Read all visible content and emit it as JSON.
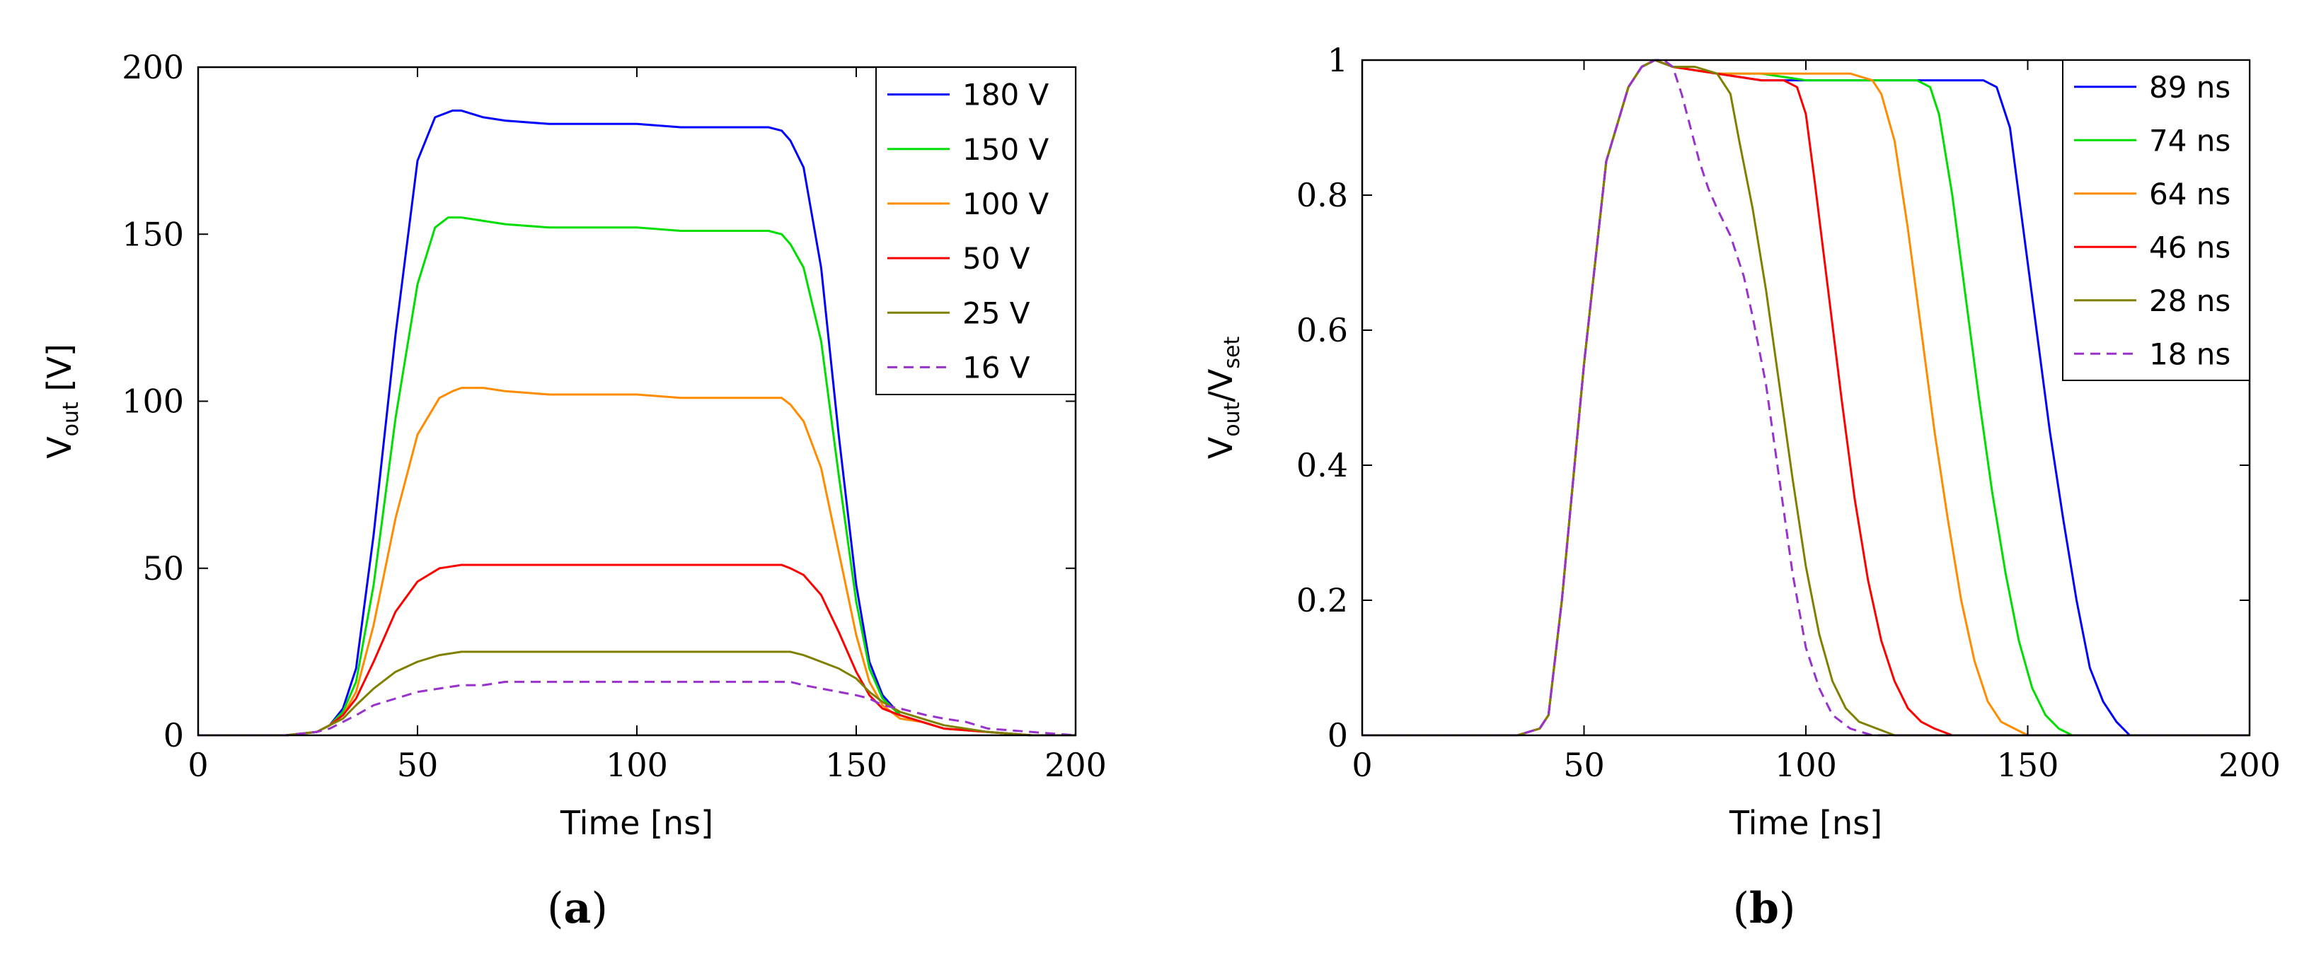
{
  "chart_data": [
    {
      "type": "line",
      "panel_label": "a",
      "caption_open": "(",
      "caption_close": ")",
      "xlabel": "Time [ns]",
      "ylabel_main": "V",
      "ylabel_sub": "out",
      "ylabel_unit": " [V]",
      "xlim": [
        0,
        200
      ],
      "ylim": [
        0,
        200
      ],
      "xticks": [
        0,
        50,
        100,
        150,
        200
      ],
      "xtick_labels": [
        "0",
        "50",
        "100",
        "150",
        "200"
      ],
      "yticks": [
        0,
        50,
        100,
        150,
        200
      ],
      "ytick_labels": [
        "0",
        "50",
        "100",
        "150",
        "200"
      ],
      "legend_position": "top-right",
      "series": [
        {
          "name": "180 V",
          "color": "#0000ff",
          "dashed": false,
          "x": [
            0,
            20,
            27,
            30,
            33,
            36,
            40,
            45,
            50,
            54,
            58,
            60,
            65,
            70,
            80,
            90,
            100,
            110,
            120,
            130,
            133,
            135,
            138,
            142,
            146,
            150,
            153,
            156,
            160,
            165,
            170,
            180,
            190,
            200
          ],
          "y": [
            0,
            0,
            1,
            3,
            8,
            20,
            60,
            120,
            172,
            185,
            187,
            187,
            185,
            184,
            183,
            183,
            183,
            182,
            182,
            182,
            181,
            178,
            170,
            140,
            90,
            45,
            22,
            12,
            6,
            4,
            2,
            1,
            0,
            0
          ]
        },
        {
          "name": "150 V",
          "color": "#00dd00",
          "dashed": false,
          "x": [
            0,
            20,
            27,
            30,
            33,
            36,
            40,
            45,
            50,
            54,
            57,
            60,
            65,
            70,
            80,
            90,
            100,
            110,
            120,
            130,
            133,
            135,
            138,
            142,
            146,
            150,
            153,
            156,
            160,
            165,
            170,
            180,
            190,
            200
          ],
          "y": [
            0,
            0,
            1,
            3,
            7,
            16,
            45,
            95,
            135,
            152,
            155,
            155,
            154,
            153,
            152,
            152,
            152,
            151,
            151,
            151,
            150,
            147,
            140,
            118,
            78,
            40,
            20,
            11,
            6,
            4,
            2,
            1,
            0,
            0
          ]
        },
        {
          "name": "100 V",
          "color": "#ff8c00",
          "dashed": false,
          "x": [
            0,
            20,
            27,
            30,
            33,
            36,
            40,
            45,
            50,
            55,
            58,
            60,
            65,
            70,
            80,
            90,
            100,
            110,
            120,
            130,
            133,
            135,
            138,
            142,
            146,
            150,
            153,
            156,
            160,
            165,
            170,
            180,
            190,
            200
          ],
          "y": [
            0,
            0,
            1,
            3,
            6,
            13,
            33,
            65,
            90,
            101,
            103,
            104,
            104,
            103,
            102,
            102,
            102,
            101,
            101,
            101,
            101,
            99,
            94,
            80,
            55,
            30,
            16,
            9,
            5,
            4,
            2,
            1,
            0,
            0
          ]
        },
        {
          "name": "50 V",
          "color": "#ff0000",
          "dashed": false,
          "x": [
            0,
            20,
            27,
            30,
            33,
            36,
            40,
            45,
            50,
            55,
            60,
            65,
            70,
            80,
            90,
            100,
            110,
            120,
            130,
            133,
            135,
            138,
            142,
            146,
            150,
            153,
            156,
            160,
            165,
            170,
            180,
            190,
            200
          ],
          "y": [
            0,
            0,
            1,
            3,
            6,
            11,
            22,
            37,
            46,
            50,
            51,
            51,
            51,
            51,
            51,
            51,
            51,
            51,
            51,
            51,
            50,
            48,
            42,
            31,
            19,
            12,
            8,
            6,
            4,
            2,
            1,
            0,
            0
          ]
        },
        {
          "name": "25 V",
          "color": "#808000",
          "dashed": false,
          "x": [
            0,
            20,
            27,
            30,
            33,
            36,
            40,
            45,
            50,
            55,
            60,
            65,
            70,
            80,
            90,
            100,
            110,
            120,
            130,
            133,
            135,
            138,
            142,
            146,
            150,
            153,
            156,
            160,
            165,
            170,
            180,
            190,
            200
          ],
          "y": [
            0,
            0,
            1,
            3,
            5,
            9,
            14,
            19,
            22,
            24,
            25,
            25,
            25,
            25,
            25,
            25,
            25,
            25,
            25,
            25,
            25,
            24,
            22,
            20,
            17,
            13,
            10,
            7,
            5,
            3,
            1,
            0,
            0
          ]
        },
        {
          "name": "16 V",
          "color": "#9932cc",
          "dashed": true,
          "x": [
            0,
            20,
            27,
            30,
            33,
            36,
            40,
            45,
            50,
            55,
            60,
            65,
            70,
            80,
            90,
            100,
            110,
            120,
            130,
            133,
            135,
            138,
            142,
            146,
            150,
            153,
            156,
            160,
            163,
            166,
            170,
            175,
            180,
            190,
            200
          ],
          "y": [
            0,
            0,
            1,
            2,
            4,
            6,
            9,
            11,
            13,
            14,
            15,
            15,
            16,
            16,
            16,
            16,
            16,
            16,
            16,
            16,
            16,
            15,
            14,
            13,
            12,
            11,
            9,
            8,
            7,
            6,
            5,
            4,
            2,
            1,
            0
          ]
        }
      ]
    },
    {
      "type": "line",
      "panel_label": "b",
      "caption_open": "(",
      "caption_close": ")",
      "xlabel": "Time [ns]",
      "ylabel_main": "V",
      "ylabel_sub": "out",
      "ylabel_div": "/V",
      "ylabel_sub2": "set",
      "xlim": [
        0,
        200
      ],
      "ylim": [
        0,
        1
      ],
      "xticks": [
        0,
        50,
        100,
        150,
        200
      ],
      "xtick_labels": [
        "0",
        "50",
        "100",
        "150",
        "200"
      ],
      "yticks": [
        0,
        0.2,
        0.4,
        0.6,
        0.8,
        1
      ],
      "ytick_labels": [
        "0",
        "0.2",
        "0.4",
        "0.6",
        "0.8",
        "1"
      ],
      "legend_position": "top-right",
      "series": [
        {
          "name": "89 ns",
          "color": "#0000ff",
          "dashed": false,
          "x": [
            0,
            35,
            40,
            42,
            45,
            50,
            55,
            60,
            63,
            66,
            70,
            80,
            90,
            100,
            110,
            120,
            130,
            140,
            143,
            146,
            149,
            152,
            155,
            158,
            161,
            164,
            167,
            170,
            173,
            180,
            200
          ],
          "y": [
            0,
            0,
            0.01,
            0.03,
            0.2,
            0.55,
            0.85,
            0.96,
            0.99,
            1.0,
            0.99,
            0.98,
            0.97,
            0.97,
            0.97,
            0.97,
            0.97,
            0.97,
            0.96,
            0.9,
            0.75,
            0.6,
            0.45,
            0.32,
            0.2,
            0.1,
            0.05,
            0.02,
            0,
            0,
            0
          ]
        },
        {
          "name": "74 ns",
          "color": "#00dd00",
          "dashed": false,
          "x": [
            0,
            35,
            40,
            42,
            45,
            50,
            55,
            60,
            63,
            66,
            70,
            80,
            90,
            100,
            110,
            120,
            125,
            128,
            130,
            133,
            136,
            139,
            142,
            145,
            148,
            151,
            154,
            157,
            160,
            170,
            200
          ],
          "y": [
            0,
            0,
            0.01,
            0.03,
            0.2,
            0.55,
            0.85,
            0.96,
            0.99,
            1.0,
            0.99,
            0.98,
            0.98,
            0.97,
            0.97,
            0.97,
            0.97,
            0.96,
            0.92,
            0.8,
            0.65,
            0.5,
            0.36,
            0.24,
            0.14,
            0.07,
            0.03,
            0.01,
            0,
            0,
            0
          ]
        },
        {
          "name": "64 ns",
          "color": "#ff8c00",
          "dashed": false,
          "x": [
            0,
            35,
            40,
            42,
            45,
            50,
            55,
            60,
            63,
            66,
            70,
            80,
            90,
            100,
            110,
            115,
            117,
            120,
            123,
            126,
            129,
            132,
            135,
            138,
            141,
            144,
            147,
            150,
            160,
            200
          ],
          "y": [
            0,
            0,
            0.01,
            0.03,
            0.2,
            0.55,
            0.85,
            0.96,
            0.99,
            1.0,
            0.99,
            0.98,
            0.98,
            0.98,
            0.98,
            0.97,
            0.95,
            0.88,
            0.75,
            0.6,
            0.45,
            0.32,
            0.2,
            0.11,
            0.05,
            0.02,
            0.01,
            0,
            0,
            0
          ]
        },
        {
          "name": "46 ns",
          "color": "#ff0000",
          "dashed": false,
          "x": [
            0,
            35,
            40,
            42,
            45,
            50,
            55,
            60,
            63,
            66,
            70,
            80,
            90,
            95,
            98,
            100,
            102,
            105,
            108,
            111,
            114,
            117,
            120,
            123,
            126,
            129,
            133,
            140,
            200
          ],
          "y": [
            0,
            0,
            0.01,
            0.03,
            0.2,
            0.55,
            0.85,
            0.96,
            0.99,
            1.0,
            0.99,
            0.98,
            0.97,
            0.97,
            0.96,
            0.92,
            0.82,
            0.66,
            0.5,
            0.35,
            0.23,
            0.14,
            0.08,
            0.04,
            0.02,
            0.01,
            0,
            0,
            0
          ]
        },
        {
          "name": "28 ns",
          "color": "#808000",
          "dashed": false,
          "x": [
            0,
            35,
            40,
            42,
            45,
            50,
            55,
            60,
            63,
            66,
            70,
            75,
            80,
            83,
            85,
            88,
            91,
            94,
            97,
            100,
            103,
            106,
            109,
            112,
            116,
            120,
            200
          ],
          "y": [
            0,
            0,
            0.01,
            0.03,
            0.2,
            0.55,
            0.85,
            0.96,
            0.99,
            1.0,
            0.99,
            0.99,
            0.98,
            0.95,
            0.88,
            0.78,
            0.66,
            0.52,
            0.38,
            0.25,
            0.15,
            0.08,
            0.04,
            0.02,
            0.01,
            0,
            0
          ]
        },
        {
          "name": "18 ns",
          "color": "#9932cc",
          "dashed": true,
          "x": [
            0,
            35,
            40,
            42,
            45,
            50,
            55,
            60,
            63,
            66,
            68,
            70,
            72,
            74,
            76,
            78,
            80,
            83,
            86,
            88,
            91,
            94,
            97,
            100,
            103,
            106,
            110,
            115,
            200
          ],
          "y": [
            0,
            0,
            0.01,
            0.03,
            0.2,
            0.55,
            0.85,
            0.96,
            0.99,
            1.0,
            1.0,
            0.99,
            0.95,
            0.9,
            0.85,
            0.81,
            0.78,
            0.74,
            0.68,
            0.62,
            0.52,
            0.38,
            0.24,
            0.13,
            0.07,
            0.03,
            0.01,
            0,
            0
          ]
        }
      ]
    }
  ]
}
